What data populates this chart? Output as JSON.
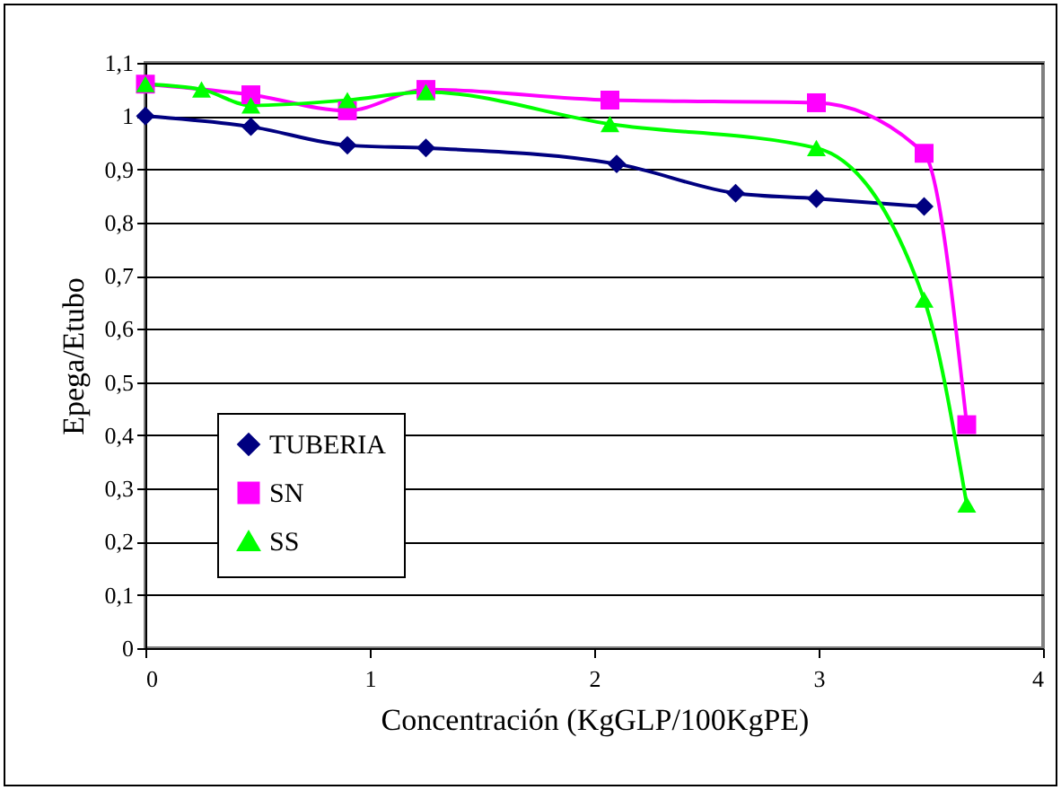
{
  "chart_data": {
    "type": "line",
    "xlabel": "Concentración (KgGLP/100KgPE)",
    "ylabel": "Epega/Etubo",
    "xlim": [
      0,
      4
    ],
    "xticks": [
      0,
      1,
      2,
      3,
      4
    ],
    "ylim": [
      0,
      1.1
    ],
    "yticks": [
      0,
      {
        "value": 0.1,
        "label": "0,1"
      },
      {
        "value": 0.2,
        "label": "0,2"
      },
      {
        "value": 0.3,
        "label": "0,3"
      },
      {
        "value": 0.4,
        "label": "0,4"
      },
      {
        "value": 0.5,
        "label": "0,5"
      },
      {
        "value": 0.6,
        "label": "0,6"
      },
      {
        "value": 0.7,
        "label": "0,7"
      },
      {
        "value": 0.8,
        "label": "0,8"
      },
      {
        "value": 0.9,
        "label": "0,9"
      },
      1,
      {
        "value": 1.1,
        "label": "1,1"
      }
    ],
    "grid": "y",
    "legend": "bottom left",
    "series": [
      {
        "name": "TUBERIA",
        "color": "#000080",
        "marker": "diamond",
        "x": [
          0,
          0.47,
          0.9,
          1.25,
          2.1,
          2.63,
          2.99,
          3.47
        ],
        "values": [
          1.0,
          0.98,
          0.945,
          0.94,
          0.91,
          0.855,
          0.845,
          0.83
        ]
      },
      {
        "name": "SN",
        "color": "#ff00ff",
        "marker": "square",
        "x": [
          0,
          0.47,
          0.9,
          1.25,
          2.07,
          2.99,
          3.47,
          3.66
        ],
        "values": [
          1.06,
          1.04,
          1.01,
          1.05,
          1.03,
          1.025,
          0.93,
          0.42
        ]
      },
      {
        "name": "SS",
        "color": "#00ff00",
        "marker": "triangle",
        "x": [
          0,
          0.25,
          0.47,
          0.9,
          1.25,
          2.07,
          2.99,
          3.47,
          3.66
        ],
        "values": [
          1.06,
          1.05,
          1.02,
          1.03,
          1.045,
          0.985,
          0.94,
          0.655,
          0.27
        ]
      }
    ]
  }
}
